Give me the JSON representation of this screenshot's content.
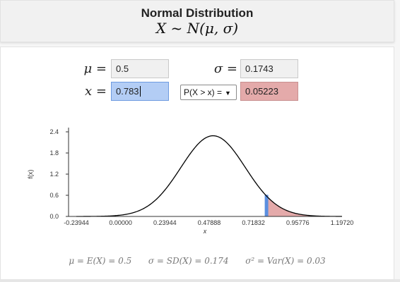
{
  "header": {
    "title": "Normal Distribution",
    "subtitle": "X ~ N(μ, σ)"
  },
  "inputs": {
    "mu_label": "μ =",
    "mu_value": "0.5",
    "sigma_label": "σ =",
    "sigma_value": "0.1743",
    "x_label": "x =",
    "x_value": "0.783",
    "prob_select": "P(X > x) =",
    "prob_result": "0.05223"
  },
  "chart_data": {
    "type": "area",
    "mean": 0.5,
    "sd": 0.1743,
    "shade_from": 0.783,
    "x_ticks": [
      "-0.23944",
      "0.00000",
      "0.23944",
      "0.47888",
      "0.71832",
      "0.95776",
      "1.19720"
    ],
    "x_tick_values": [
      -0.23944,
      0,
      0.23944,
      0.47888,
      0.71832,
      0.95776,
      1.1972
    ],
    "y_ticks": [
      "0.0",
      "0.6",
      "1.2",
      "1.8",
      "2.4"
    ],
    "y_tick_values": [
      0,
      0.6,
      1.2,
      1.8,
      2.4
    ],
    "xlim": [
      -0.23944,
      1.1972
    ],
    "ylim": [
      0,
      2.4
    ],
    "xlabel": "x",
    "ylabel": "f(x)",
    "colors": {
      "curve": "#000000",
      "tail_fill": "#e4aaaa",
      "marker": "#5b8fe0"
    }
  },
  "formula": {
    "mean": "μ = E(X) = 0.5",
    "sd": "σ = SD(X) = 0.174",
    "var": "σ² = Var(X) = 0.03"
  }
}
